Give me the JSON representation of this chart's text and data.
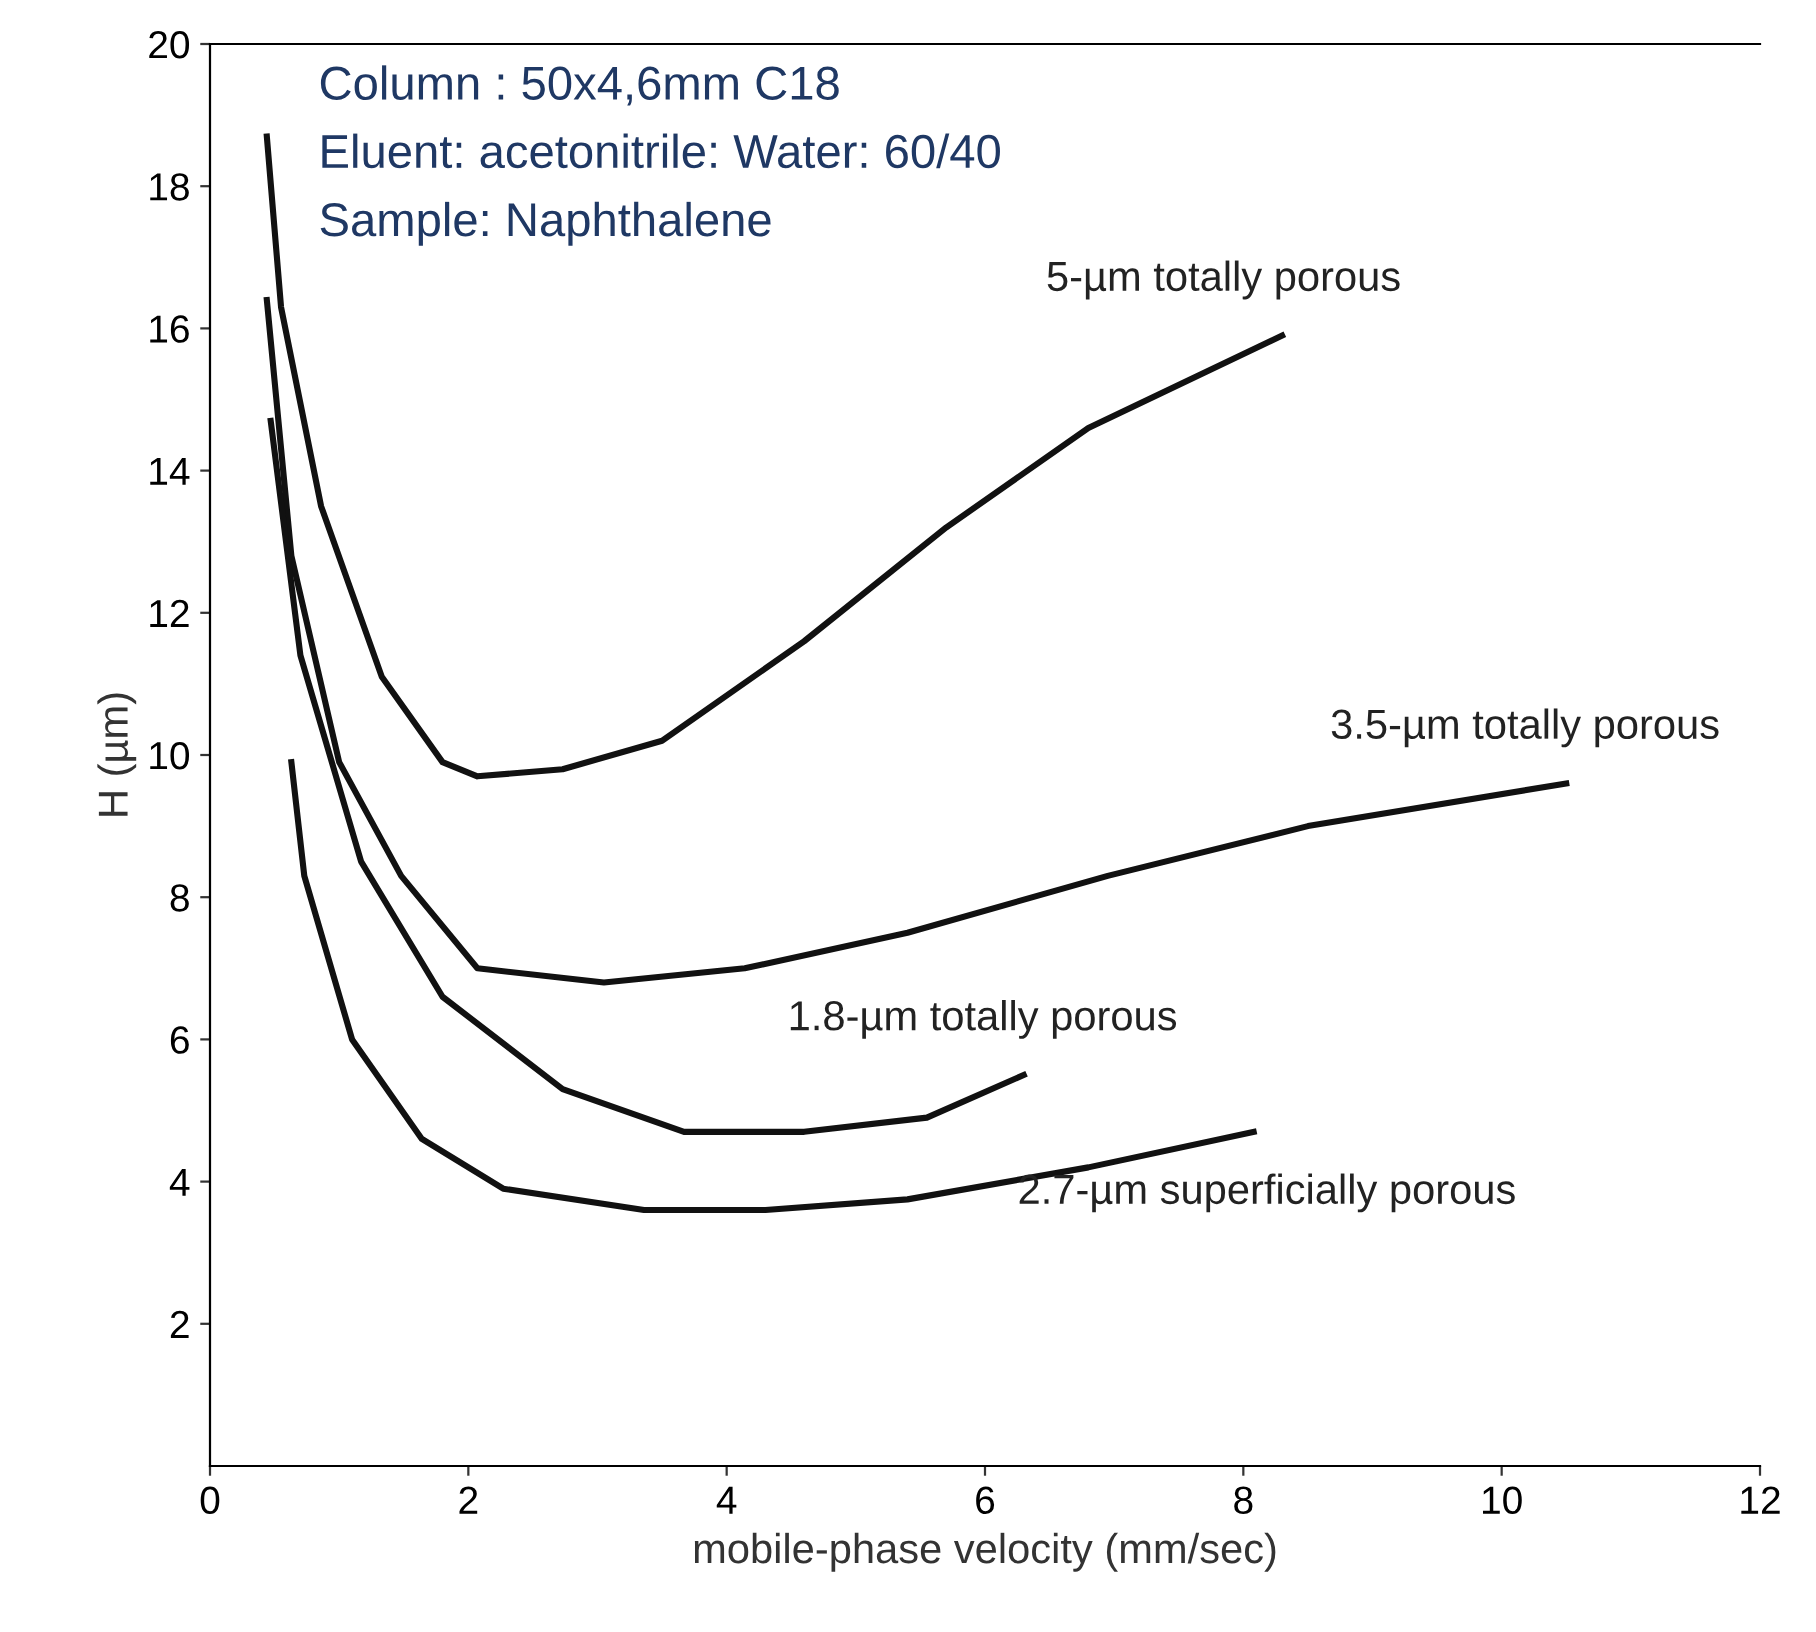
{
  "chart_data": {
    "type": "line",
    "xlabel": "mobile-phase velocity (mm/sec)",
    "ylabel": "H (µm)",
    "xlim": [
      0,
      12
    ],
    "xticks": [
      0,
      2,
      4,
      6,
      8,
      10,
      12
    ],
    "ylim": [
      0,
      20
    ],
    "yticks": [
      2,
      4,
      6,
      8,
      10,
      12,
      14,
      16,
      18,
      20
    ],
    "grid": false,
    "legend": false,
    "marker": "none",
    "line_style": "solid",
    "series": [
      {
        "name": "5-µm totally porous",
        "color": "#111111",
        "x": [
          0.44,
          0.55,
          0.86,
          1.33,
          1.8,
          2.07,
          2.73,
          3.5,
          4.6,
          5.7,
          6.8,
          8.3
        ],
        "values": [
          18.7,
          16.3,
          13.5,
          11.1,
          9.9,
          9.7,
          9.8,
          10.2,
          11.6,
          13.2,
          14.6,
          15.9
        ]
      },
      {
        "name": "3.5-µm totally porous",
        "color": "#111111",
        "x": [
          0.44,
          0.63,
          1.0,
          1.48,
          2.07,
          3.05,
          4.14,
          5.4,
          6.95,
          8.5,
          10.5
        ],
        "values": [
          16.4,
          12.8,
          9.9,
          8.3,
          7.0,
          6.8,
          7.0,
          7.5,
          8.3,
          9.0,
          9.6
        ]
      },
      {
        "name": "1.8-µm totally porous",
        "color": "#111111",
        "x": [
          0.47,
          0.7,
          1.17,
          1.8,
          2.73,
          3.67,
          4.6,
          5.55,
          6.3
        ],
        "values": [
          14.7,
          11.4,
          8.5,
          6.6,
          5.3,
          4.7,
          4.7,
          4.9,
          5.5
        ]
      },
      {
        "name": "2.7-µm superficially porous",
        "color": "#111111",
        "x": [
          0.63,
          0.73,
          1.1,
          1.64,
          2.27,
          3.36,
          4.3,
          5.4,
          6.8,
          8.08
        ],
        "values": [
          9.9,
          8.3,
          6.0,
          4.6,
          3.9,
          3.6,
          3.6,
          3.75,
          4.2,
          4.7
        ]
      }
    ],
    "annotations": [
      "Column : 50x4,6mm C18",
      "Eluent: acetonitrile: Water: 60/40",
      "Sample: Naphthalene"
    ]
  }
}
